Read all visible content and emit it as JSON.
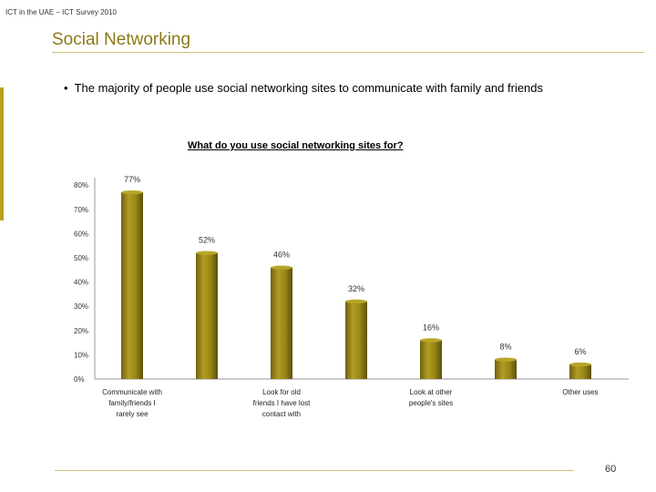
{
  "header": {
    "text": "ICT in the UAE – ICT Survey 2010"
  },
  "slide": {
    "title": "Social Networking",
    "bullet": "The majority of people use social networking sites to communicate with family and friends",
    "page_number": "60"
  },
  "colors": {
    "bar": "#948314",
    "bar_light": "#b8a52a",
    "accent": "#8a7a16"
  },
  "chart_data": {
    "type": "bar",
    "title": "What do you use social networking sites for?",
    "y_ticks": [
      "0%",
      "10%",
      "20%",
      "30%",
      "40%",
      "50%",
      "60%",
      "70%",
      "80%"
    ],
    "ylim": [
      0,
      80
    ],
    "values": [
      77,
      52,
      46,
      32,
      16,
      8,
      6
    ],
    "value_labels": [
      "77%",
      "52%",
      "46%",
      "32%",
      "16%",
      "8%",
      "6%"
    ],
    "category_labels": [
      {
        "bar_index": 0,
        "lines": [
          "Communicate with",
          "family/friends I",
          "rarely see"
        ]
      },
      {
        "bar_index": 2,
        "lines": [
          "Look for old",
          "friends I have lost",
          "contact with"
        ]
      },
      {
        "bar_index": 4,
        "lines": [
          "Look at other",
          "people's sites"
        ]
      },
      {
        "bar_index": 6,
        "lines": [
          "Other uses"
        ]
      }
    ]
  }
}
